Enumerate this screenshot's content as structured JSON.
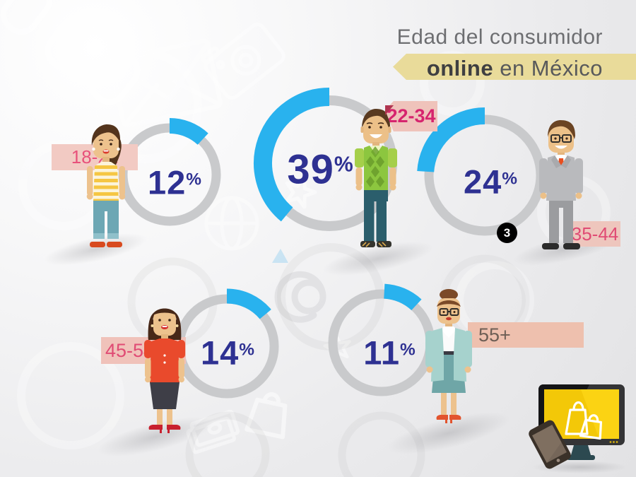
{
  "title": {
    "line1": "Edad del consumidor",
    "line2_bold": "online",
    "line2_rest": " en México"
  },
  "badge": {
    "value": "3"
  },
  "chart_data": {
    "type": "donut-set",
    "title": "Edad del consumidor online en México",
    "unit": "%",
    "colors": {
      "arc": "#29b2ee",
      "track": "#c9cacc",
      "value_text": "#2e3192"
    },
    "segments": [
      {
        "age_range": "18-21",
        "value": 12
      },
      {
        "age_range": "22-34",
        "value": 39
      },
      {
        "age_range": "35-44",
        "value": 24
      },
      {
        "age_range": "45-54",
        "value": 14
      },
      {
        "age_range": "55+",
        "value": 11
      }
    ]
  }
}
